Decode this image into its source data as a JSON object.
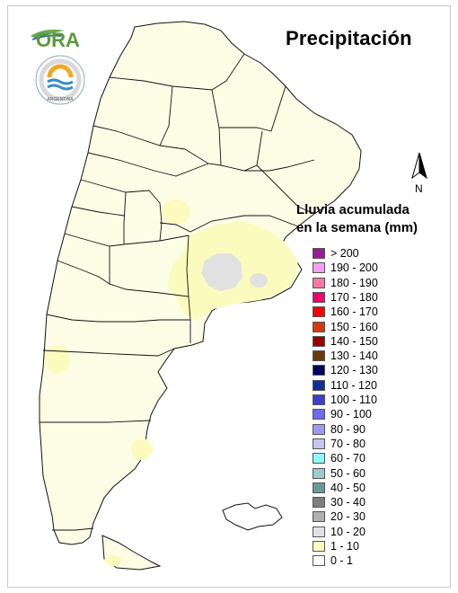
{
  "title": "Precipitación",
  "logo": {
    "text": "ORA",
    "seal_text": "ARGENTINA"
  },
  "north_label": "N",
  "legend": {
    "title_lines": [
      "Lluvia acumulada",
      "en la semana (mm)"
    ],
    "items": [
      {
        "label": "> 200",
        "color": "#9a1c9b"
      },
      {
        "label": "190 - 200",
        "color": "#f79ef0"
      },
      {
        "label": "180 - 190",
        "color": "#f47aa3"
      },
      {
        "label": "170 - 180",
        "color": "#f2006f"
      },
      {
        "label": "160 - 170",
        "color": "#ff0000"
      },
      {
        "label": "150 - 160",
        "color": "#d43a12"
      },
      {
        "label": "140 - 150",
        "color": "#9a0000"
      },
      {
        "label": "130 - 140",
        "color": "#6b3a0c"
      },
      {
        "label": "120 - 130",
        "color": "#02025c"
      },
      {
        "label": "110 - 120",
        "color": "#0d2f9a"
      },
      {
        "label": "100 - 110",
        "color": "#3c3ccd"
      },
      {
        "label": "90 - 100",
        "color": "#6b6bf4"
      },
      {
        "label": "80 - 90",
        "color": "#9a9af4"
      },
      {
        "label": "70 - 80",
        "color": "#c6c6f7"
      },
      {
        "label": "60 - 70",
        "color": "#8ff7f7"
      },
      {
        "label": "50 - 60",
        "color": "#9ccccb"
      },
      {
        "label": "40 - 50",
        "color": "#6a9a9a"
      },
      {
        "label": "30 - 40",
        "color": "#7f7f7f"
      },
      {
        "label": "20 - 30",
        "color": "#b0b0b0"
      },
      {
        "label": "10 - 20",
        "color": "#e1e1e1"
      },
      {
        "label": "1 - 10",
        "color": "#fbfbbe"
      },
      {
        "label": "0 - 1",
        "color": "#ffffff"
      }
    ]
  },
  "colors": {
    "land_base": "#fdfde6",
    "light_rain": "#fbfbbe",
    "moderate_rain": "#e1e1e1",
    "border": "#111111"
  }
}
